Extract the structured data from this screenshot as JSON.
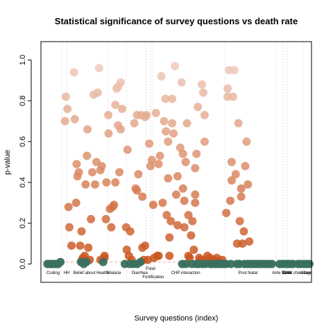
{
  "chart_data": {
    "type": "scatter",
    "title": "Statistical significance of survey questions vs death rate",
    "xlabel": "Survey questions (index)",
    "ylabel": "p-value",
    "xlim": [
      0,
      100
    ],
    "ylim": [
      -0.09,
      1.09
    ],
    "yticks": [
      0.0,
      0.2,
      0.4,
      0.6,
      0.8,
      1.0
    ],
    "grid": false,
    "threshold": 0.01,
    "colors": {
      "significant": "#3a7060",
      "threshold_line": "#f4a9a9",
      "divider": "#d9d9d9",
      "gradient_high": "#efcebf",
      "gradient_low": "#c9521a"
    },
    "groups": [
      {
        "label": "Coding",
        "x_label": 4.5,
        "divider": 7.8,
        "row": 0
      },
      {
        "label": "HH",
        "x_label": 9.5,
        "divider": 9.6,
        "row": 0
      },
      {
        "label": "Belief about Health",
        "x_label": 18.5,
        "divider": 24.8,
        "row": 0
      },
      {
        "label": "Malaria",
        "x_label": 27.0,
        "divider": 31.6,
        "row": 0
      },
      {
        "label": "Diarrhea",
        "x_label": 36.5,
        "divider": 38.8,
        "row": 0
      },
      {
        "label": "Food",
        "x_label": 40.5,
        "divider": 40.6,
        "row": -1
      },
      {
        "label": "Fortification",
        "x_label": 41.5,
        "divider": 41.5,
        "row": 1
      },
      {
        "label": "CHP interaction",
        "x_label": 53.5,
        "divider": 68.0,
        "row": 0
      },
      {
        "label": "Post Natal",
        "x_label": 76.5,
        "divider": 86.8,
        "row": 0
      },
      {
        "label": "Ante Natal",
        "x_label": 89.0,
        "divider": 89.4,
        "row": 0
      },
      {
        "label": "Birth",
        "x_label": 90.8,
        "divider": 90.9,
        "row": 0
      },
      {
        "label": "Child character",
        "x_label": 94.5,
        "divider": 96.8,
        "row": 0
      },
      {
        "label": "Village",
        "x_label": 98.0,
        "divider": null,
        "row": 0
      }
    ],
    "points": [
      {
        "x": 8.9,
        "y": 0.7
      },
      {
        "x": 9.2,
        "y": 0.82
      },
      {
        "x": 9.8,
        "y": 0.76
      },
      {
        "x": 10.2,
        "y": 0.28
      },
      {
        "x": 10.5,
        "y": 0.18
      },
      {
        "x": 11.3,
        "y": 0.09
      },
      {
        "x": 12.2,
        "y": 0.94
      },
      {
        "x": 12.5,
        "y": 0.71
      },
      {
        "x": 13.0,
        "y": 0.3
      },
      {
        "x": 13.2,
        "y": 0.49
      },
      {
        "x": 13.5,
        "y": 0.43
      },
      {
        "x": 14.0,
        "y": 0.45
      },
      {
        "x": 14.5,
        "y": 0.09
      },
      {
        "x": 15.0,
        "y": 0.16
      },
      {
        "x": 15.2,
        "y": 0.02
      },
      {
        "x": 15.5,
        "y": 0.03
      },
      {
        "x": 16.2,
        "y": 0.04
      },
      {
        "x": 16.5,
        "y": 0.39
      },
      {
        "x": 17.0,
        "y": 0.53
      },
      {
        "x": 17.2,
        "y": 0.66
      },
      {
        "x": 17.5,
        "y": 0.08
      },
      {
        "x": 18.0,
        "y": 0.02
      },
      {
        "x": 18.5,
        "y": 0.22
      },
      {
        "x": 19.0,
        "y": 0.45
      },
      {
        "x": 19.5,
        "y": 0.83
      },
      {
        "x": 20.0,
        "y": 0.39
      },
      {
        "x": 20.5,
        "y": 0.5
      },
      {
        "x": 21.0,
        "y": 0.84
      },
      {
        "x": 21.5,
        "y": 0.96
      },
      {
        "x": 22.0,
        "y": 0.46
      },
      {
        "x": 22.5,
        "y": 0.48
      },
      {
        "x": 22.0,
        "y": 0.02
      },
      {
        "x": 23.5,
        "y": 0.04
      },
      {
        "x": 23.5,
        "y": 0.03
      },
      {
        "x": 24.0,
        "y": 0.22
      },
      {
        "x": 24.2,
        "y": 0.4
      },
      {
        "x": 24.9,
        "y": 0.73
      },
      {
        "x": 25.0,
        "y": 0.64
      },
      {
        "x": 25.5,
        "y": 0.27
      },
      {
        "x": 26.0,
        "y": 0.18
      },
      {
        "x": 26.5,
        "y": 0.28
      },
      {
        "x": 27.0,
        "y": 0.29
      },
      {
        "x": 27.5,
        "y": 0.4
      },
      {
        "x": 27.5,
        "y": 0.78
      },
      {
        "x": 28.0,
        "y": 0.86
      },
      {
        "x": 28.5,
        "y": 0.87
      },
      {
        "x": 28.5,
        "y": 0.68
      },
      {
        "x": 29.0,
        "y": 0.45
      },
      {
        "x": 29.5,
        "y": 0.89
      },
      {
        "x": 29.5,
        "y": 0.66
      },
      {
        "x": 30.0,
        "y": 0.76
      },
      {
        "x": 31.5,
        "y": 0.18
      },
      {
        "x": 31.7,
        "y": 0.07
      },
      {
        "x": 32.0,
        "y": 0.56
      },
      {
        "x": 32.5,
        "y": 0.04
      },
      {
        "x": 33.0,
        "y": 0.16
      },
      {
        "x": 33.5,
        "y": 0.02
      },
      {
        "x": 34.5,
        "y": 0.69
      },
      {
        "x": 35.0,
        "y": 0.37
      },
      {
        "x": 35.5,
        "y": 0.36
      },
      {
        "x": 35.5,
        "y": 0.73
      },
      {
        "x": 36.0,
        "y": 0.44
      },
      {
        "x": 37.0,
        "y": 0.73
      },
      {
        "x": 37.5,
        "y": 0.33
      },
      {
        "x": 37.5,
        "y": 0.08
      },
      {
        "x": 38.0,
        "y": 0.02
      },
      {
        "x": 38.5,
        "y": 0.09
      },
      {
        "x": 38.5,
        "y": 0.72
      },
      {
        "x": 39.0,
        "y": 0.73
      },
      {
        "x": 39.5,
        "y": 0.02
      },
      {
        "x": 40.0,
        "y": 0.59
      },
      {
        "x": 40.5,
        "y": 0.48
      },
      {
        "x": 41.0,
        "y": 0.51
      },
      {
        "x": 41.5,
        "y": 0.29
      },
      {
        "x": 41.8,
        "y": 0.03
      },
      {
        "x": 42.5,
        "y": 0.74
      },
      {
        "x": 43.0,
        "y": 0.04
      },
      {
        "x": 43.5,
        "y": 0.04
      },
      {
        "x": 43.5,
        "y": 0.49
      },
      {
        "x": 44.0,
        "y": 0.53
      },
      {
        "x": 44.5,
        "y": 0.92
      },
      {
        "x": 45.0,
        "y": 0.3
      },
      {
        "x": 45.5,
        "y": 0.7
      },
      {
        "x": 46.0,
        "y": 0.81
      },
      {
        "x": 46.2,
        "y": 0.65
      },
      {
        "x": 46.5,
        "y": 0.24
      },
      {
        "x": 47.0,
        "y": 0.42
      },
      {
        "x": 47.0,
        "y": 0.6
      },
      {
        "x": 47.5,
        "y": 0.13
      },
      {
        "x": 47.5,
        "y": 0.04
      },
      {
        "x": 48.0,
        "y": 0.21
      },
      {
        "x": 48.5,
        "y": 0.69
      },
      {
        "x": 48.5,
        "y": 0.81
      },
      {
        "x": 49.0,
        "y": 0.64
      },
      {
        "x": 49.5,
        "y": 0.97
      },
      {
        "x": 50.0,
        "y": 0.34
      },
      {
        "x": 50.5,
        "y": 0.19
      },
      {
        "x": 50.5,
        "y": 0.43
      },
      {
        "x": 51.5,
        "y": 0.57
      },
      {
        "x": 52.0,
        "y": 0.89
      },
      {
        "x": 52.5,
        "y": 0.54
      },
      {
        "x": 52.5,
        "y": 0.37
      },
      {
        "x": 53.0,
        "y": 0.31
      },
      {
        "x": 53.0,
        "y": 0.18
      },
      {
        "x": 53.5,
        "y": 0.5
      },
      {
        "x": 54.0,
        "y": 0.69
      },
      {
        "x": 54.5,
        "y": 0.04
      },
      {
        "x": 54.5,
        "y": 0.24
      },
      {
        "x": 55.0,
        "y": 0.03
      },
      {
        "x": 55.5,
        "y": 0.14
      },
      {
        "x": 56.0,
        "y": 0.21
      },
      {
        "x": 56.5,
        "y": 0.07
      },
      {
        "x": 57.0,
        "y": 0.47
      },
      {
        "x": 57.0,
        "y": 0.34
      },
      {
        "x": 57.0,
        "y": 0.3
      },
      {
        "x": 57.5,
        "y": 0.54
      },
      {
        "x": 58.0,
        "y": 0.77
      },
      {
        "x": 58.5,
        "y": 0.03
      },
      {
        "x": 59.0,
        "y": 0.02
      },
      {
        "x": 59.5,
        "y": 0.88
      },
      {
        "x": 60.0,
        "y": 0.84
      },
      {
        "x": 60.5,
        "y": 0.6
      },
      {
        "x": 60.5,
        "y": 0.73
      },
      {
        "x": 61.0,
        "y": 0.02
      },
      {
        "x": 61.5,
        "y": 0.04
      },
      {
        "x": 62.0,
        "y": 0.01
      },
      {
        "x": 62.5,
        "y": 0.03
      },
      {
        "x": 63.0,
        "y": 0.0
      },
      {
        "x": 64.0,
        "y": 0.02
      },
      {
        "x": 65.0,
        "y": 0.03
      },
      {
        "x": 66.0,
        "y": 0.01
      },
      {
        "x": 67.0,
        "y": 0.02
      },
      {
        "x": 68.5,
        "y": 0.25
      },
      {
        "x": 69.0,
        "y": 0.82
      },
      {
        "x": 69.0,
        "y": 0.86
      },
      {
        "x": 69.5,
        "y": 0.95
      },
      {
        "x": 70.0,
        "y": 0.31
      },
      {
        "x": 70.5,
        "y": 0.41
      },
      {
        "x": 70.5,
        "y": 0.5
      },
      {
        "x": 71.0,
        "y": 0.82
      },
      {
        "x": 71.5,
        "y": 0.95
      },
      {
        "x": 72.0,
        "y": 0.44
      },
      {
        "x": 72.5,
        "y": 0.1
      },
      {
        "x": 73.0,
        "y": 0.69
      },
      {
        "x": 73.5,
        "y": 0.21
      },
      {
        "x": 74.0,
        "y": 0.37
      },
      {
        "x": 74.0,
        "y": 0.33
      },
      {
        "x": 74.5,
        "y": 0.1
      },
      {
        "x": 75.0,
        "y": 0.16
      },
      {
        "x": 75.5,
        "y": 0.48
      },
      {
        "x": 76.0,
        "y": 0.6
      },
      {
        "x": 76.5,
        "y": 0.39
      },
      {
        "x": 77.0,
        "y": 0.11
      }
    ],
    "significant_points": [
      {
        "x": 2.4,
        "y": 0.0
      },
      {
        "x": 3.2,
        "y": 0.0
      },
      {
        "x": 4.0,
        "y": 0.0
      },
      {
        "x": 4.8,
        "y": 0.0
      },
      {
        "x": 5.6,
        "y": 0.0
      },
      {
        "x": 6.4,
        "y": 0.0
      },
      {
        "x": 7.2,
        "y": 0.01
      },
      {
        "x": 14.8,
        "y": 0.01
      },
      {
        "x": 15.8,
        "y": 0.0
      },
      {
        "x": 16.8,
        "y": 0.01
      },
      {
        "x": 23.0,
        "y": 0.01
      },
      {
        "x": 31.0,
        "y": 0.0
      },
      {
        "x": 32.8,
        "y": 0.0
      },
      {
        "x": 34.2,
        "y": 0.0
      },
      {
        "x": 35.6,
        "y": 0.0
      },
      {
        "x": 36.8,
        "y": 0.01
      },
      {
        "x": 52.2,
        "y": 0.0
      },
      {
        "x": 53.6,
        "y": 0.0
      },
      {
        "x": 55.8,
        "y": 0.0
      },
      {
        "x": 57.4,
        "y": 0.0
      },
      {
        "x": 58.2,
        "y": 0.0
      },
      {
        "x": 59.6,
        "y": 0.0
      },
      {
        "x": 60.8,
        "y": 0.0
      },
      {
        "x": 62.6,
        "y": 0.0
      },
      {
        "x": 63.6,
        "y": 0.0
      },
      {
        "x": 64.6,
        "y": 0.0
      },
      {
        "x": 65.6,
        "y": 0.0
      },
      {
        "x": 66.6,
        "y": 0.0
      },
      {
        "x": 67.6,
        "y": 0.0
      },
      {
        "x": 68.4,
        "y": 0.0
      },
      {
        "x": 70.2,
        "y": 0.0
      },
      {
        "x": 72.4,
        "y": 0.0
      },
      {
        "x": 73.4,
        "y": 0.0
      },
      {
        "x": 75.2,
        "y": 0.0
      },
      {
        "x": 76.4,
        "y": 0.0
      },
      {
        "x": 77.4,
        "y": 0.0
      },
      {
        "x": 78.4,
        "y": 0.0
      },
      {
        "x": 79.4,
        "y": 0.0
      },
      {
        "x": 80.4,
        "y": 0.0
      },
      {
        "x": 81.4,
        "y": 0.0
      },
      {
        "x": 82.4,
        "y": 0.0
      },
      {
        "x": 83.4,
        "y": 0.0
      },
      {
        "x": 84.4,
        "y": 0.0
      },
      {
        "x": 85.4,
        "y": 0.0
      },
      {
        "x": 88.2,
        "y": 0.0
      },
      {
        "x": 89.2,
        "y": 0.0
      },
      {
        "x": 90.2,
        "y": 0.0
      },
      {
        "x": 91.2,
        "y": 0.0
      },
      {
        "x": 92.2,
        "y": 0.0
      },
      {
        "x": 93.2,
        "y": 0.0
      },
      {
        "x": 95.0,
        "y": 0.0
      },
      {
        "x": 96.0,
        "y": 0.0
      },
      {
        "x": 97.2,
        "y": 0.0
      },
      {
        "x": 98.2,
        "y": 0.0
      },
      {
        "x": 99.2,
        "y": 0.0
      }
    ]
  }
}
